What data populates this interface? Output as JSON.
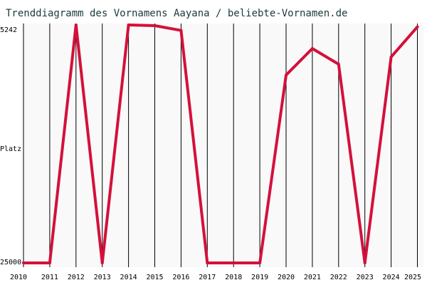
{
  "chart_data": {
    "type": "line",
    "title": "Trenddiagramm des Vornamens Aayana / beliebte-Vornamen.de",
    "xlabel": "",
    "ylabel": "Platz",
    "y_axis_inverted": true,
    "y_ticks": [
      "5242",
      "25000"
    ],
    "ylim": [
      5242,
      25000
    ],
    "grid": "vertical",
    "colors": {
      "line": "#d4103a",
      "plot_background": "#f9f9f9",
      "grid": "#000000",
      "title": "#1a3a3a"
    },
    "x": [
      "2010",
      "2011",
      "2012",
      "2013",
      "2014",
      "2015",
      "2016",
      "2017",
      "2018",
      "2019",
      "2020",
      "2021",
      "2022",
      "2023",
      "2024",
      "2025"
    ],
    "series": [
      {
        "values": [
          25000,
          25000,
          5242,
          25000,
          5242,
          5300,
          5700,
          25000,
          25000,
          25000,
          9400,
          7200,
          8500,
          25000,
          7900,
          5400
        ]
      }
    ]
  }
}
